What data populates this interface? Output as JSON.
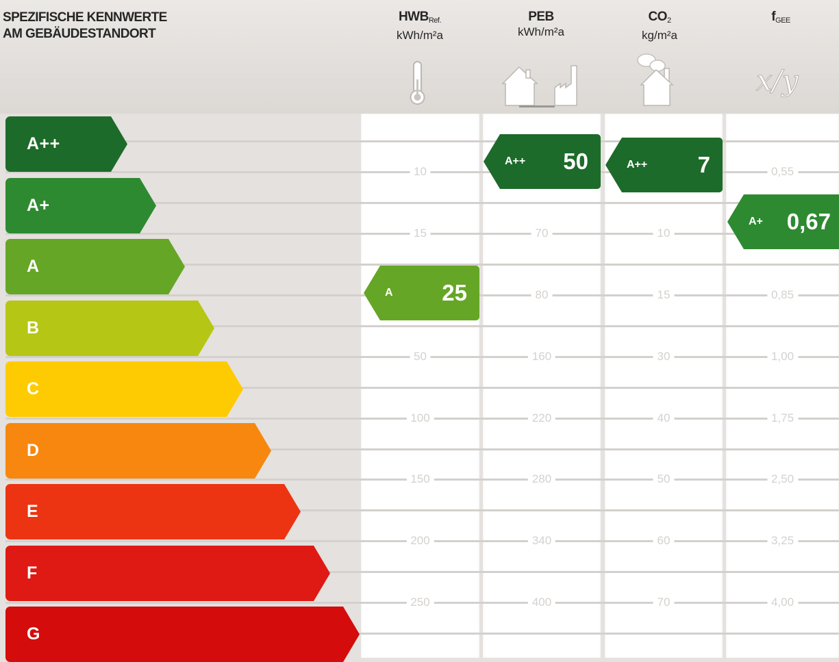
{
  "header": {
    "title_line1": "SPEZIFISCHE KENNWERTE",
    "title_line2": "AM GEBÄUDESTANDORT"
  },
  "columns": [
    {
      "id": "hwb",
      "name": "HWB",
      "name_sub": "Ref.",
      "unit": "kWh/m²a",
      "icon": "thermometer-icon",
      "ticks": [
        "10",
        "15",
        "25",
        "50",
        "100",
        "150",
        "200",
        "250"
      ]
    },
    {
      "id": "peb",
      "name": "PEB",
      "name_sub": "",
      "unit": "kWh/m²a",
      "icon": "house-factory-icon",
      "ticks": [
        "70",
        "80",
        "160",
        "220",
        "280",
        "340",
        "400"
      ]
    },
    {
      "id": "co2",
      "name": "CO",
      "name_sub": "2",
      "unit": "kg/m²a",
      "icon": "house-smoke-icon",
      "ticks": [
        "10",
        "15",
        "30",
        "40",
        "50",
        "60",
        "70"
      ]
    },
    {
      "id": "fgee",
      "name": "f",
      "name_sub": "GEE",
      "unit": "",
      "icon": "ratio-icon",
      "ticks": [
        "0,55",
        "0,85",
        "1,00",
        "1,75",
        "2,50",
        "3,25",
        "4,00"
      ]
    }
  ],
  "icon_text": {
    "ratio": "x/y"
  },
  "classes": [
    {
      "label": "A++",
      "color": "#1d6b2a"
    },
    {
      "label": "A+",
      "color": "#2e8a31"
    },
    {
      "label": "A",
      "color": "#66a626"
    },
    {
      "label": "B",
      "color": "#b6c614"
    },
    {
      "label": "C",
      "color": "#fecb02"
    },
    {
      "label": "D",
      "color": "#f7870f"
    },
    {
      "label": "E",
      "color": "#ec3413"
    },
    {
      "label": "F",
      "color": "#df1913"
    },
    {
      "label": "G",
      "color": "#d40c0b"
    }
  ],
  "ratings": {
    "hwb": {
      "class": "A",
      "value": "25",
      "color": "#66a626"
    },
    "peb": {
      "class": "A++",
      "value": "50",
      "color": "#1d6b2a"
    },
    "co2": {
      "class": "A++",
      "value": "7",
      "color": "#1d6b2a"
    },
    "fgee": {
      "class": "A+",
      "value": "0,67",
      "color": "#2e8a31"
    }
  }
}
